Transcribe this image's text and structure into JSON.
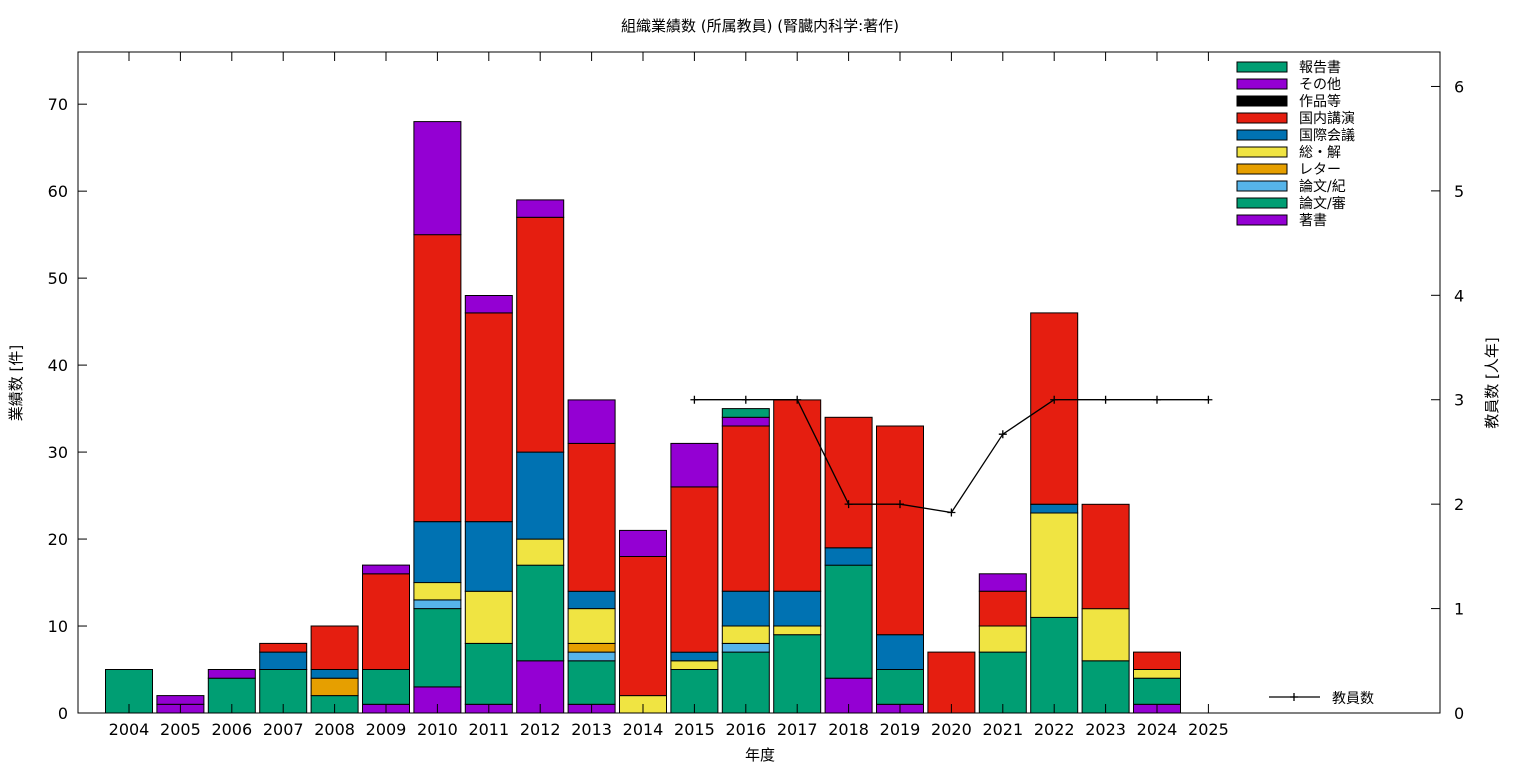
{
  "chart_data": {
    "type": "bar",
    "title": "組織業績数 (所属教員) (腎臓内科学:著作)",
    "xlabel": "年度",
    "ylabel": "業績数 [件]",
    "y2label": "教員数 [人年]",
    "ylim": [
      0,
      76
    ],
    "y2lim": [
      0,
      6.33
    ],
    "yticks": [
      0,
      10,
      20,
      30,
      40,
      50,
      60,
      70
    ],
    "y2ticks": [
      0,
      1,
      2,
      3,
      4,
      5,
      6
    ],
    "grid": false,
    "legend_position": "top-right",
    "categories": [
      "2004",
      "2005",
      "2006",
      "2007",
      "2008",
      "2009",
      "2010",
      "2011",
      "2012",
      "2013",
      "2014",
      "2015",
      "2016",
      "2017",
      "2018",
      "2019",
      "2020",
      "2021",
      "2022",
      "2023",
      "2024",
      "2025"
    ],
    "series": [
      {
        "name": "著書",
        "color": "#9400d3",
        "values": [
          0,
          1,
          0,
          0,
          0,
          1,
          3,
          1,
          6,
          1,
          0,
          0,
          0,
          0,
          4,
          1,
          0,
          0,
          0,
          0,
          1,
          0
        ]
      },
      {
        "name": "論文/審",
        "color": "#009e73",
        "values": [
          5,
          0,
          4,
          5,
          2,
          4,
          9,
          7,
          11,
          5,
          0,
          5,
          7,
          9,
          13,
          4,
          0,
          7,
          11,
          6,
          3,
          0
        ]
      },
      {
        "name": "論文/紀",
        "color": "#56b4e9",
        "values": [
          0,
          0,
          0,
          0,
          0,
          0,
          1,
          0,
          0,
          1,
          0,
          0,
          1,
          0,
          0,
          0,
          0,
          0,
          0,
          0,
          0,
          0
        ]
      },
      {
        "name": "レター",
        "color": "#e69f00",
        "values": [
          0,
          0,
          0,
          0,
          2,
          0,
          0,
          0,
          0,
          1,
          0,
          0,
          0,
          0,
          0,
          0,
          0,
          0,
          0,
          0,
          0,
          0
        ]
      },
      {
        "name": "総・解",
        "color": "#f0e442",
        "values": [
          0,
          0,
          0,
          0,
          0,
          0,
          2,
          6,
          3,
          4,
          2,
          1,
          2,
          1,
          0,
          0,
          0,
          3,
          12,
          6,
          1,
          0
        ]
      },
      {
        "name": "国際会議",
        "color": "#0072b2",
        "values": [
          0,
          0,
          0,
          2,
          1,
          0,
          7,
          8,
          10,
          2,
          0,
          1,
          4,
          4,
          2,
          4,
          0,
          0,
          1,
          0,
          0,
          0
        ]
      },
      {
        "name": "国内講演",
        "color": "#e51e10",
        "values": [
          0,
          0,
          0,
          1,
          5,
          11,
          33,
          24,
          27,
          17,
          16,
          19,
          19,
          22,
          15,
          24,
          7,
          4,
          22,
          12,
          2,
          0
        ]
      },
      {
        "name": "作品等",
        "color": "#000000",
        "values": [
          0,
          0,
          0,
          0,
          0,
          0,
          0,
          0,
          0,
          0,
          0,
          0,
          0,
          0,
          0,
          0,
          0,
          0,
          0,
          0,
          0,
          0
        ]
      },
      {
        "name": "その他",
        "color": "#9400d3",
        "values": [
          0,
          1,
          1,
          0,
          0,
          1,
          13,
          2,
          2,
          5,
          3,
          5,
          1,
          0,
          0,
          0,
          0,
          2,
          0,
          0,
          0,
          0
        ]
      },
      {
        "name": "報告書",
        "color": "#009e73",
        "values": [
          0,
          0,
          0,
          0,
          0,
          0,
          0,
          0,
          0,
          0,
          0,
          0,
          1,
          0,
          0,
          0,
          0,
          0,
          0,
          0,
          0,
          0
        ]
      }
    ],
    "legend_order": [
      "報告書",
      "その他",
      "作品等",
      "国内講演",
      "国際会議",
      "総・解",
      "レター",
      "論文/紀",
      "論文/審",
      "著書"
    ],
    "line_series": {
      "name": "教員数",
      "color": "#000000",
      "axis": "y2",
      "points": [
        {
          "x": "2015",
          "y": 3
        },
        {
          "x": "2016",
          "y": 3
        },
        {
          "x": "2017",
          "y": 3
        },
        {
          "x": "2018",
          "y": 2
        },
        {
          "x": "2019",
          "y": 2
        },
        {
          "x": "2020",
          "y": 1.92
        },
        {
          "x": "2021",
          "y": 2.67
        },
        {
          "x": "2022",
          "y": 3
        },
        {
          "x": "2023",
          "y": 3
        },
        {
          "x": "2024",
          "y": 3
        },
        {
          "x": "2025",
          "y": 3
        }
      ]
    }
  }
}
